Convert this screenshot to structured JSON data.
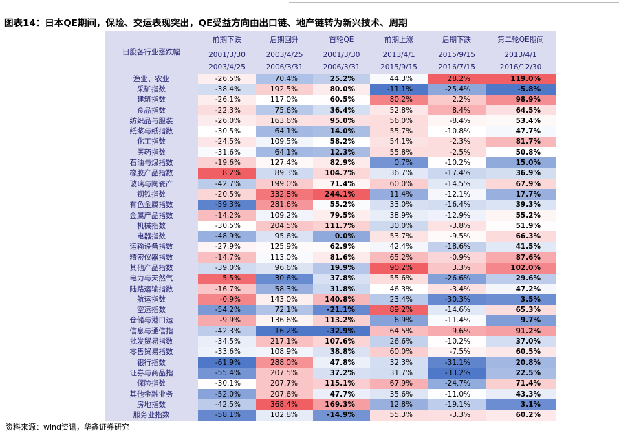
{
  "header": {
    "title": "图表14：日本QE期间，保险、交运表现突出，QE受益方向由出口链、地产链转为新兴技术、周期"
  },
  "table": {
    "corner": "日股各行业涨跌幅",
    "columns": [
      "前期下跌",
      "后期回升",
      "首轮QE",
      "前期上涨",
      "后期下跌",
      "第二轮QE期间"
    ],
    "starts": [
      "2001/3/30",
      "2003/4/25",
      "2001/3/30",
      "2013/4/1",
      "2015/9/15",
      "2013/4/1"
    ],
    "ends": [
      "2003/4/25",
      "2006/3/31",
      "2006/3/31",
      "2015/9/15",
      "2016/7/15",
      "2016/12/30"
    ],
    "rows": [
      [
        "渔业、农业",
        "-26.5%",
        "70.4%",
        "25.2%",
        "44.3%",
        "28.2%",
        "119.0%"
      ],
      [
        "采矿指数",
        "-38.4%",
        "192.5%",
        "80.0%",
        "-11.1%",
        "-25.4%",
        "-5.8%"
      ],
      [
        "建筑指数",
        "-26.1%",
        "117.0%",
        "60.5%",
        "80.2%",
        "2.2%",
        "98.9%"
      ],
      [
        "食品指数",
        "-22.3%",
        "75.6%",
        "36.4%",
        "52.8%",
        "8.4%",
        "64.5%"
      ],
      [
        "纺织品与服装",
        "-26.0%",
        "163.6%",
        "95.0%",
        "56.0%",
        "-8.4%",
        "53.4%"
      ],
      [
        "纸浆与纸指数",
        "-30.5%",
        "64.1%",
        "14.0%",
        "55.7%",
        "-10.8%",
        "47.7%"
      ],
      [
        "化工指数",
        "-24.5%",
        "109.5%",
        "58.2%",
        "54.1%",
        "-2.3%",
        "81.7%"
      ],
      [
        "医药指数",
        "-31.6%",
        "64.1%",
        "12.3%",
        "55.8%",
        "-2.5%",
        "50.8%"
      ],
      [
        "石油与煤指数",
        "-19.6%",
        "127.4%",
        "82.9%",
        "0.7%",
        "-10.2%",
        "15.0%"
      ],
      [
        "橡胶产品指数",
        "8.2%",
        "89.3%",
        "104.7%",
        "36.7%",
        "-17.4%",
        "36.9%"
      ],
      [
        "玻璃与陶瓷产",
        "-42.7%",
        "199.0%",
        "71.4%",
        "60.0%",
        "-14.5%",
        "67.9%"
      ],
      [
        "钢铁指数",
        "-20.5%",
        "332.8%",
        "244.1%",
        "11.4%",
        "-12.1%",
        "17.7%"
      ],
      [
        "有色金属指数",
        "-59.3%",
        "281.6%",
        "55.2%",
        "33.0%",
        "-16.4%",
        "39.3%"
      ],
      [
        "金属产品指数",
        "-14.2%",
        "109.2%",
        "79.5%",
        "38.9%",
        "-12.9%",
        "55.2%"
      ],
      [
        "机械指数",
        "-30.5%",
        "204.5%",
        "111.7%",
        "30.0%",
        "-3.8%",
        "51.9%"
      ],
      [
        "电器指数",
        "-48.9%",
        "95.6%",
        "0.0%",
        "53.7%",
        "-9.5%",
        "66.3%"
      ],
      [
        "运输设备指数",
        "-27.9%",
        "125.9%",
        "62.9%",
        "42.4%",
        "-18.6%",
        "41.5%"
      ],
      [
        "精密仪器指数",
        "-14.7%",
        "113.0%",
        "81.6%",
        "65.2%",
        "-0.9%",
        "87.6%"
      ],
      [
        "其他产品指数",
        "-39.0%",
        "96.6%",
        "19.9%",
        "90.2%",
        "3.3%",
        "102.0%"
      ],
      [
        "电力与天然气",
        "5.5%",
        "30.6%",
        "37.8%",
        "55.6%",
        "-26.6%",
        "29.6%"
      ],
      [
        "陆路运输指数",
        "-16.7%",
        "58.3%",
        "31.8%",
        "46.3%",
        "-3.4%",
        "47.2%"
      ],
      [
        "航运指数",
        "-0.9%",
        "143.0%",
        "140.8%",
        "23.4%",
        "-30.3%",
        "3.5%"
      ],
      [
        "空运指数",
        "-54.2%",
        "72.1%",
        "-21.1%",
        "89.2%",
        "-14.6%",
        "65.3%"
      ],
      [
        "仓储与港口运",
        "-9.9%",
        "136.6%",
        "113.2%",
        "6.9%",
        "-11.4%",
        "9.7%"
      ],
      [
        "信息与通信指",
        "-42.3%",
        "16.2%",
        "-32.9%",
        "64.5%",
        "9.6%",
        "91.2%"
      ],
      [
        "批发贸易指数",
        "-34.5%",
        "217.1%",
        "107.6%",
        "26.6%",
        "-10.2%",
        "37.0%"
      ],
      [
        "零售贸易指数",
        "-33.6%",
        "108.9%",
        "38.8%",
        "60.0%",
        "-7.5%",
        "60.5%"
      ],
      [
        "银行指数",
        "-61.9%",
        "288.0%",
        "47.8%",
        "32.3%",
        "-31.1%",
        "20.8%"
      ],
      [
        "证券与商品指",
        "-55.4%",
        "207.5%",
        "37.2%",
        "31.7%",
        "-33.2%",
        "22.5%"
      ],
      [
        "保险指数",
        "-30.1%",
        "207.7%",
        "115.1%",
        "67.9%",
        "-24.7%",
        "71.4%"
      ],
      [
        "其他金融业务",
        "-52.0%",
        "207.6%",
        "47.7%",
        "35.6%",
        "-11.0%",
        "43.3%"
      ],
      [
        "房地指数",
        "-42.5%",
        "368.4%",
        "169.3%",
        "12.8%",
        "-19.1%",
        "3.1%"
      ],
      [
        "服务业指数",
        "-58.1%",
        "102.8%",
        "-14.9%",
        "55.3%",
        "-3.3%",
        "60.2%"
      ]
    ]
  },
  "footer": {
    "source": "资料来源：wind资讯，华鑫证券研究"
  }
}
